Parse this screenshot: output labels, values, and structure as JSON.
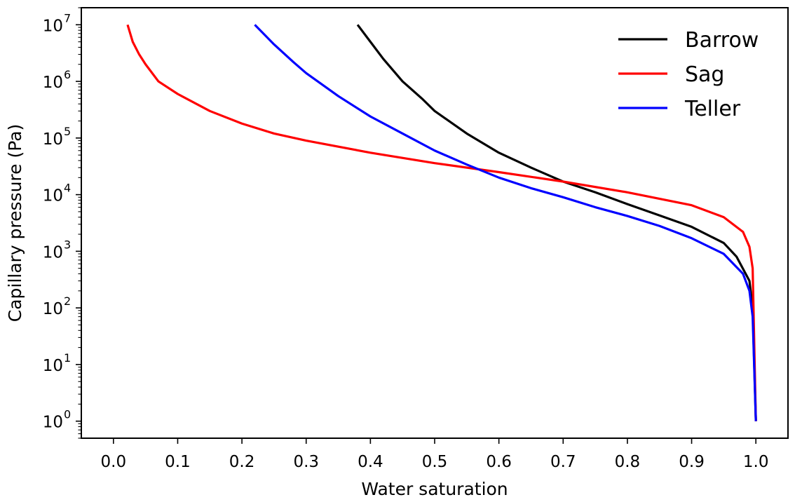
{
  "chart_data": {
    "type": "line",
    "xlabel": "Water saturation",
    "ylabel": "Capillary pressure (Pa)",
    "yscale": "log",
    "xlim": [
      -0.05,
      1.05
    ],
    "ylim": [
      0.5,
      20000000
    ],
    "grid": false,
    "legend_position": "top-right",
    "x_ticks": [
      0.0,
      0.1,
      0.2,
      0.3,
      0.4,
      0.5,
      0.6,
      0.7,
      0.8,
      0.9,
      1.0
    ],
    "x_tick_labels": [
      "0.0",
      "0.1",
      "0.2",
      "0.3",
      "0.4",
      "0.5",
      "0.6",
      "0.7",
      "0.8",
      "0.9",
      "1.0"
    ],
    "y_tick_exponents": [
      0,
      1,
      2,
      3,
      4,
      5,
      6,
      7
    ],
    "y_tick_base": "10",
    "series": [
      {
        "name": "Barrow",
        "color": "#000000",
        "x": [
          0.38,
          0.4,
          0.42,
          0.45,
          0.48,
          0.5,
          0.55,
          0.6,
          0.65,
          0.7,
          0.75,
          0.8,
          0.85,
          0.9,
          0.95,
          0.97,
          0.99,
          0.995,
          1.0
        ],
        "y": [
          10000000,
          5000000,
          2500000,
          1000000,
          500000,
          300000,
          120000,
          55000,
          30000,
          17000,
          11000,
          6800,
          4300,
          2700,
          1400,
          800,
          300,
          100,
          1
        ]
      },
      {
        "name": "Sag",
        "color": "#ff0000",
        "x": [
          0.022,
          0.03,
          0.04,
          0.05,
          0.07,
          0.1,
          0.15,
          0.2,
          0.25,
          0.3,
          0.4,
          0.5,
          0.6,
          0.7,
          0.8,
          0.9,
          0.95,
          0.98,
          0.99,
          0.995,
          1.0
        ],
        "y": [
          10000000,
          5000000,
          3000000,
          2000000,
          1000000,
          600000,
          300000,
          180000,
          120000,
          90000,
          55000,
          36000,
          25000,
          17000,
          11000,
          6500,
          4000,
          2200,
          1200,
          500,
          1
        ]
      },
      {
        "name": "Teller",
        "color": "#0000ff",
        "x": [
          0.22,
          0.25,
          0.28,
          0.3,
          0.35,
          0.4,
          0.45,
          0.5,
          0.55,
          0.6,
          0.65,
          0.7,
          0.75,
          0.8,
          0.85,
          0.9,
          0.95,
          0.98,
          0.99,
          0.995,
          1.0
        ],
        "y": [
          10000000,
          4500000,
          2200000,
          1400000,
          550000,
          240000,
          120000,
          60000,
          34000,
          20000,
          13000,
          9000,
          6000,
          4200,
          2800,
          1700,
          900,
          400,
          200,
          70,
          1
        ]
      }
    ]
  }
}
